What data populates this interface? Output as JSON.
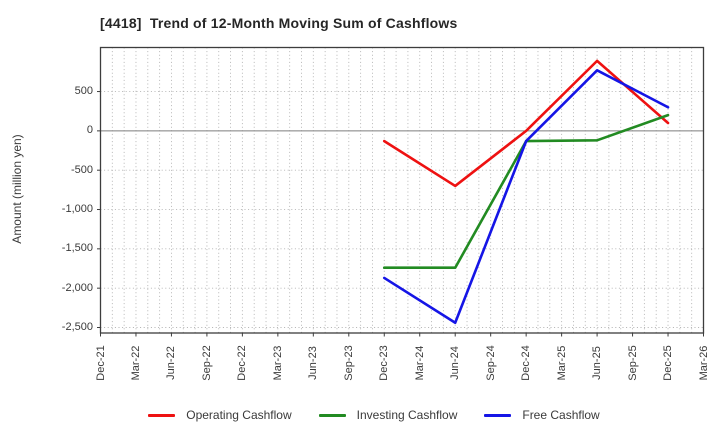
{
  "chart_data": {
    "type": "line",
    "title": "[4418]  Trend of 12-Month Moving Sum of Cashflows",
    "ylabel": "Amount (million yen)",
    "xlabel": "",
    "x_tick_labels": [
      "Dec-21",
      "Mar-22",
      "Jun-22",
      "Sep-22",
      "Dec-22",
      "Mar-23",
      "Jun-23",
      "Sep-23",
      "Dec-23",
      "Mar-24",
      "Jun-24",
      "Sep-24",
      "Dec-24",
      "Mar-25",
      "Jun-25",
      "Sep-25",
      "Dec-25",
      "Mar-26"
    ],
    "yticks": [
      500,
      0,
      -500,
      -1000,
      -1500,
      -2000,
      -2500
    ],
    "ytick_labels": [
      "500",
      "0",
      "-500",
      "-1,000",
      "-1,500",
      "-2,000",
      "-2,500"
    ],
    "ylim": [
      -2570,
      1060
    ],
    "grid": {
      "style": "dotted",
      "x_minor_per_interval": 3,
      "zero_line": "solid gray"
    },
    "legend_position": "bottom center",
    "series": [
      {
        "name": "Operating Cashflow",
        "color": "#ee1111",
        "points": [
          [
            "Dec-23",
            -130
          ],
          [
            "Jun-24",
            -700
          ],
          [
            "Dec-24",
            0
          ],
          [
            "Jun-25",
            890
          ],
          [
            "Dec-25",
            100
          ]
        ]
      },
      {
        "name": "Investing Cashflow",
        "color": "#228b22",
        "points": [
          [
            "Dec-23",
            -1740
          ],
          [
            "Jun-24",
            -1740
          ],
          [
            "Dec-24",
            -130
          ],
          [
            "Jun-25",
            -120
          ],
          [
            "Dec-25",
            200
          ]
        ]
      },
      {
        "name": "Free Cashflow",
        "color": "#1515e6",
        "points": [
          [
            "Dec-23",
            -1870
          ],
          [
            "Jun-24",
            -2440
          ],
          [
            "Dec-24",
            -130
          ],
          [
            "Jun-25",
            770
          ],
          [
            "Dec-25",
            300
          ]
        ]
      }
    ],
    "colors": {
      "plot_border": "#3d3d3d",
      "grid_dotted": "#b0b0b0",
      "zero_line": "#7d7d7d",
      "tick_text": "#3a3a3a",
      "title_text": "#262626"
    }
  }
}
